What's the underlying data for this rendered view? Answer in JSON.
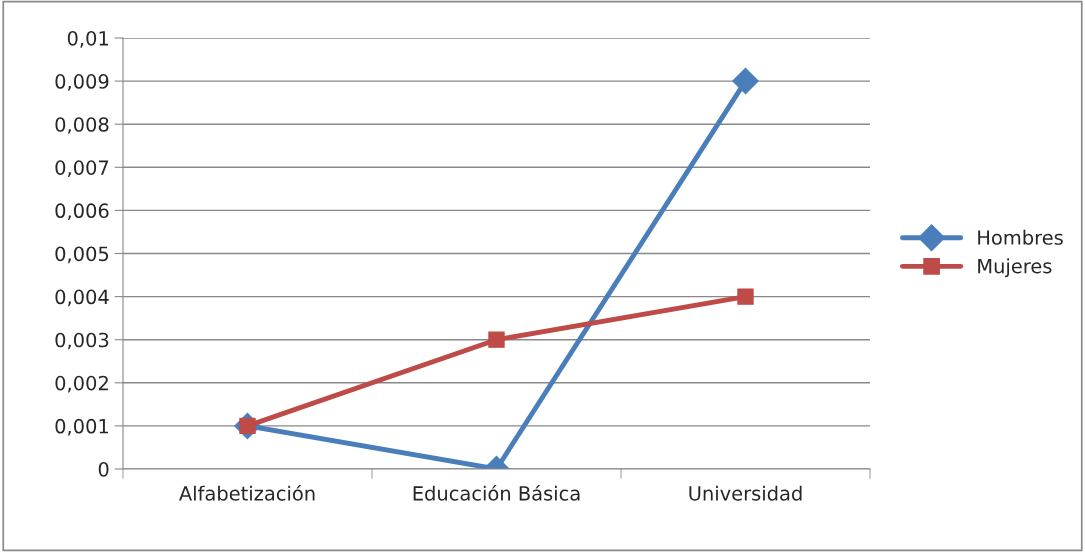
{
  "chart_data": {
    "type": "line",
    "categories": [
      "Alfabetización",
      "Educación Básica",
      "Universidad"
    ],
    "series": [
      {
        "name": "Hombres",
        "color": "#4a7ebb",
        "marker": "diamond",
        "values": [
          0.001,
          0,
          0.009
        ]
      },
      {
        "name": "Mujeres",
        "color": "#be4b48",
        "marker": "square",
        "values": [
          0.001,
          0.003,
          0.004
        ]
      }
    ],
    "ylim": [
      0,
      0.01
    ],
    "yticks": [
      {
        "value": 0,
        "label": "0"
      },
      {
        "value": 0.001,
        "label": "0,001"
      },
      {
        "value": 0.002,
        "label": "0,002"
      },
      {
        "value": 0.003,
        "label": "0,003"
      },
      {
        "value": 0.004,
        "label": "0,004"
      },
      {
        "value": 0.005,
        "label": "0,005"
      },
      {
        "value": 0.006,
        "label": "0,006"
      },
      {
        "value": 0.007,
        "label": "0,007"
      },
      {
        "value": 0.008,
        "label": "0,008"
      },
      {
        "value": 0.009,
        "label": "0,009"
      },
      {
        "value": 0.01,
        "label": "0,01"
      }
    ],
    "grid": "y",
    "legend": "right",
    "line_style": "solid"
  }
}
